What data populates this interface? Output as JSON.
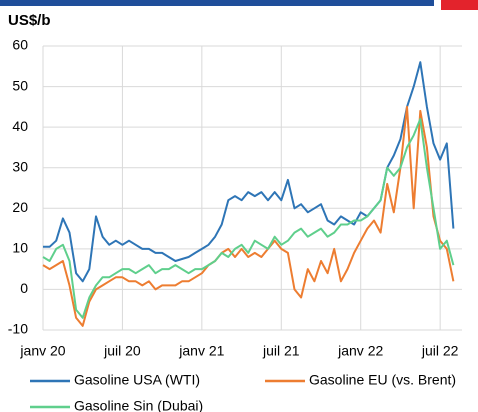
{
  "chart_data": {
    "type": "line",
    "y_label": "US$/b",
    "x": [
      0,
      0.5,
      1,
      1.5,
      2,
      2.5,
      3,
      3.5,
      4,
      4.5,
      5,
      5.5,
      6,
      6.5,
      7,
      7.5,
      8,
      8.5,
      9,
      9.5,
      10,
      10.5,
      11,
      11.5,
      12,
      12.5,
      13,
      13.5,
      14,
      14.5,
      15,
      15.5,
      16,
      16.5,
      17,
      17.5,
      18,
      18.5,
      19,
      19.5,
      20,
      20.5,
      21,
      21.5,
      22,
      22.5,
      23,
      23.5,
      24,
      24.5,
      25,
      25.5,
      26,
      26.5,
      27,
      27.5,
      28,
      28.5,
      29,
      29.5,
      30,
      30.5,
      31
    ],
    "xlim": [
      0,
      31.5
    ],
    "xticks": [
      {
        "value": 0,
        "label": "janv 20"
      },
      {
        "value": 6,
        "label": "juil 20"
      },
      {
        "value": 12,
        "label": "janv 21"
      },
      {
        "value": 18,
        "label": "juil 21"
      },
      {
        "value": 24,
        "label": "janv 22"
      },
      {
        "value": 30,
        "label": "juil 22"
      }
    ],
    "ylim": [
      -10,
      60
    ],
    "yticks": [
      -10,
      0,
      10,
      20,
      30,
      40,
      50,
      60
    ],
    "grid": true,
    "series": [
      {
        "name": "Gasoline USA (WTI)",
        "color": "#2e75b6",
        "values": [
          10.5,
          10.5,
          12,
          17.5,
          14,
          4,
          2,
          5,
          18,
          13,
          11,
          12,
          11,
          12,
          11,
          10,
          10,
          9,
          9,
          8,
          7,
          7.5,
          8,
          9,
          10,
          11,
          13,
          16,
          22,
          23,
          22,
          24,
          23,
          24,
          22,
          24,
          22,
          27,
          20,
          21,
          19,
          20,
          21,
          17,
          16,
          18,
          17,
          16,
          19,
          18,
          20,
          22,
          30,
          33,
          37,
          45,
          50,
          56,
          45,
          36,
          32,
          36,
          15
        ]
      },
      {
        "name": "Gasoline EU (vs. Brent)",
        "color": "#ed7d31",
        "values": [
          6,
          5,
          6,
          7,
          1,
          -7,
          -9,
          -3,
          0,
          1,
          2,
          3,
          3,
          2,
          2,
          1,
          2,
          0,
          1,
          1,
          1,
          2,
          2,
          3,
          4,
          6,
          7,
          9,
          10,
          8,
          10,
          8,
          9,
          8,
          10,
          12,
          10,
          9,
          0,
          -2,
          5,
          2,
          7,
          4,
          10,
          2,
          5,
          9,
          12,
          15,
          17,
          14,
          26,
          19,
          30,
          45,
          20,
          44,
          35,
          18,
          12,
          10,
          2
        ]
      },
      {
        "name": "Gasoline Sin (Dubai)",
        "color": "#5fcf8c",
        "values": [
          8,
          7,
          10,
          11,
          7,
          -5,
          -7,
          -2,
          1,
          3,
          3,
          4,
          5,
          5,
          4,
          5,
          6,
          4,
          5,
          5,
          6,
          5,
          4,
          5,
          5,
          6,
          7,
          9,
          8,
          10,
          11,
          9,
          12,
          11,
          10,
          13,
          11,
          12,
          14,
          15,
          13,
          14,
          15,
          13,
          14,
          16,
          16,
          17,
          17,
          18,
          20,
          22,
          30,
          28,
          30,
          35,
          38,
          42,
          30,
          20,
          10,
          12,
          6
        ]
      }
    ]
  }
}
